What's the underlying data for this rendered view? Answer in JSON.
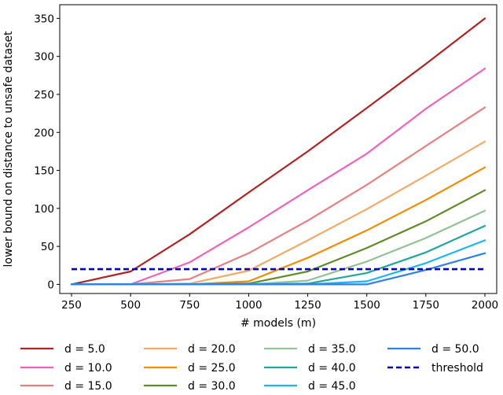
{
  "chart_data": {
    "type": "line",
    "xlabel": "# models (m)",
    "ylabel": "lower bound on distance to unsafe dataset",
    "xlim": [
      200,
      2050
    ],
    "ylim": [
      -12,
      368
    ],
    "x_ticks": [
      "250",
      "500",
      "750",
      "1000",
      "1250",
      "1500",
      "1750",
      "2000"
    ],
    "y_ticks": [
      "0",
      "50",
      "100",
      "150",
      "200",
      "250",
      "300",
      "350"
    ],
    "x": [
      250,
      500,
      750,
      1000,
      1250,
      1500,
      1750,
      2000
    ],
    "series": [
      {
        "name": "d = 5.0",
        "color": "#b22222",
        "values": [
          0,
          17,
          66,
          121,
          175,
          232,
          290,
          350
        ]
      },
      {
        "name": "d = 10.0",
        "color": "#f062b8",
        "values": [
          0,
          0,
          29,
          75,
          124,
          172,
          231,
          284
        ]
      },
      {
        "name": "d = 15.0",
        "color": "#e88080",
        "values": [
          0,
          0,
          7,
          41,
          84,
          131,
          182,
          233
        ]
      },
      {
        "name": "d = 20.0",
        "color": "#f2aa6a",
        "values": [
          0,
          0,
          1,
          18,
          58,
          99,
          143,
          188
        ]
      },
      {
        "name": "d = 25.0",
        "color": "#f28c00",
        "values": [
          0,
          0,
          0,
          4,
          35,
          71,
          111,
          154
        ]
      },
      {
        "name": "d = 30.0",
        "color": "#5e8c26",
        "values": [
          0,
          0,
          0,
          1,
          17,
          48,
          83,
          124
        ]
      },
      {
        "name": "d = 35.0",
        "color": "#92c392",
        "values": [
          0,
          0,
          0,
          0,
          5,
          30,
          61,
          97
        ]
      },
      {
        "name": "d = 40.0",
        "color": "#23a69a",
        "values": [
          0,
          0,
          0,
          0,
          1,
          15,
          42,
          77
        ]
      },
      {
        "name": "d = 45.0",
        "color": "#1ab6f0",
        "values": [
          0,
          0,
          0,
          0,
          0,
          4,
          28,
          58
        ]
      },
      {
        "name": "d = 50.0",
        "color": "#2f7fe6",
        "values": [
          0,
          0,
          0,
          0,
          0,
          0,
          19,
          41
        ]
      }
    ],
    "threshold": {
      "name": "threshold",
      "color": "#0000bb",
      "value": 20,
      "style": "dashed"
    },
    "legend_position": "bottom",
    "grid": false
  }
}
